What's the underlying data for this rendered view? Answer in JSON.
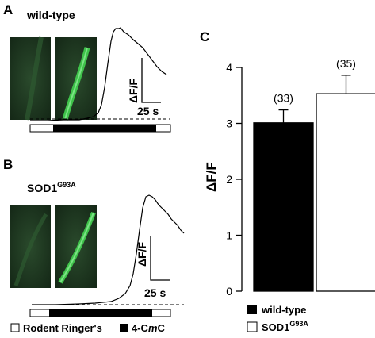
{
  "panels": {
    "a": {
      "letter": "A",
      "condition": "wild-type"
    },
    "b": {
      "letter": "B",
      "condition_base": "SOD1",
      "condition_sup": "G93A"
    },
    "c": {
      "letter": "C"
    }
  },
  "scale_bar": {
    "y_label": "ΔF/F",
    "x_label": "25 s"
  },
  "stim_legend": {
    "ringer_label": "Rodent Ringer's",
    "drug_prefix": "4-C",
    "drug_italic": "m",
    "drug_suffix": "C"
  },
  "colors": {
    "micrograph_green": "#3fc24a",
    "micrograph_bg": "#1c3a1f"
  },
  "chart_data": {
    "type": "bar",
    "categories": [
      "wild-type",
      "SOD1G93A"
    ],
    "values": [
      3.01,
      3.53
    ],
    "errors": [
      0.23,
      0.33
    ],
    "n_labels": [
      "(33)",
      "(35)"
    ],
    "ylabel": "ΔF/F",
    "ylim": [
      0,
      4
    ],
    "yticks": [
      "0",
      "1",
      "2",
      "3",
      "4"
    ],
    "bar_colors": [
      "#000000",
      "#ffffff"
    ],
    "legend": {
      "wt_label": "wild-type",
      "mut_base": "SOD1",
      "mut_sup": "G93A"
    },
    "grid": false,
    "legend_position": "bottom"
  }
}
